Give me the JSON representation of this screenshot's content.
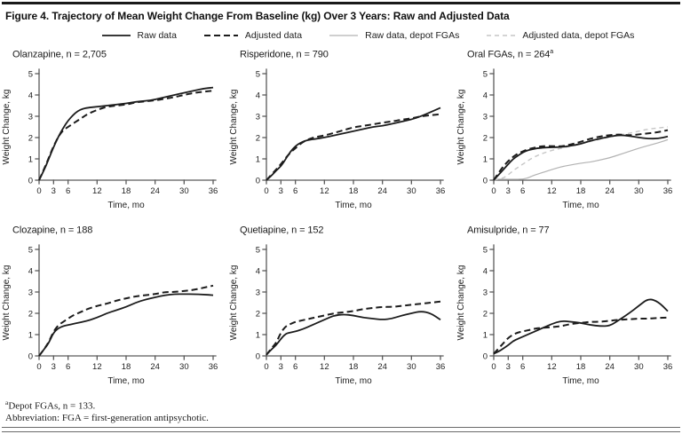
{
  "figure": {
    "title": "Figure 4. Trajectory of Mean Weight Change From Baseline (kg) Over 3 Years: Raw and Adjusted Data"
  },
  "legend": {
    "items": [
      {
        "label": "Raw data",
        "style": "raw"
      },
      {
        "label": "Adjusted data",
        "style": "adjusted"
      },
      {
        "label": "Raw data, depot FGAs",
        "style": "raw_depot"
      },
      {
        "label": "Adjusted data, depot FGAs",
        "style": "adjusted_depot"
      }
    ]
  },
  "footnotes": {
    "line1_sup": "a",
    "line1": "Depot FGAs, n = 133.",
    "line2": "Abbreviation: FGA = first-generation antipsychotic."
  },
  "chart_data": {
    "type": "line",
    "xlabel": "Time, mo",
    "ylabel": "Weight Change, kg",
    "xlim": [
      0,
      36
    ],
    "ylim": [
      0,
      5
    ],
    "xticks": [
      0,
      3,
      6,
      12,
      18,
      24,
      30,
      36
    ],
    "yticks": [
      0,
      1,
      2,
      3,
      4,
      5
    ],
    "grid": false,
    "legend_position": "top",
    "x": [
      0,
      1,
      2,
      3,
      4,
      5,
      6,
      7,
      8,
      9,
      10,
      12,
      14,
      16,
      18,
      20,
      22,
      24,
      26,
      28,
      30,
      32,
      34,
      36
    ],
    "styles": {
      "raw": {
        "color": "#1c1c1c",
        "width": 1.8,
        "dash": ""
      },
      "adjusted": {
        "color": "#1c1c1c",
        "width": 2.0,
        "dash": "7 4"
      },
      "raw_depot": {
        "color": "#b2b2b2",
        "width": 1.2,
        "dash": ""
      },
      "adjusted_depot": {
        "color": "#c6c6c6",
        "width": 1.4,
        "dash": "5 4"
      }
    },
    "charts": [
      {
        "title": "Olanzapine, n = 2,705",
        "title_sup": "",
        "series": [
          {
            "name": "Raw data",
            "style": "raw",
            "y": [
              0,
              0.45,
              1.0,
              1.55,
              2.05,
              2.45,
              2.8,
              3.05,
              3.25,
              3.35,
              3.4,
              3.45,
              3.5,
              3.55,
              3.6,
              3.68,
              3.72,
              3.78,
              3.9,
              4.0,
              4.1,
              4.2,
              4.3,
              4.35
            ]
          },
          {
            "name": "Adjusted data",
            "style": "adjusted",
            "y": [
              0,
              0.5,
              1.05,
              1.6,
              2.05,
              2.35,
              2.5,
              2.65,
              2.8,
              2.95,
              3.1,
              3.3,
              3.45,
              3.5,
              3.55,
              3.65,
              3.7,
              3.75,
              3.82,
              3.9,
              4.0,
              4.1,
              4.15,
              4.2
            ]
          }
        ]
      },
      {
        "title": "Risperidone, n = 790",
        "title_sup": "",
        "series": [
          {
            "name": "Raw data",
            "style": "raw",
            "y": [
              0,
              0.2,
              0.45,
              0.65,
              1.0,
              1.35,
              1.6,
              1.75,
              1.85,
              1.9,
              1.93,
              2.0,
              2.1,
              2.2,
              2.3,
              2.4,
              2.5,
              2.55,
              2.65,
              2.75,
              2.85,
              3.0,
              3.2,
              3.4
            ]
          },
          {
            "name": "Adjusted data",
            "style": "adjusted",
            "y": [
              0,
              0.25,
              0.5,
              0.75,
              1.05,
              1.3,
              1.5,
              1.7,
              1.85,
              1.95,
              2.02,
              2.1,
              2.22,
              2.35,
              2.48,
              2.55,
              2.62,
              2.7,
              2.76,
              2.84,
              2.9,
              3.0,
              3.05,
              3.1
            ]
          }
        ]
      },
      {
        "title": "Oral FGAs, n = 264",
        "title_sup": "a",
        "series": [
          {
            "name": "Raw data, depot FGAs",
            "style": "raw_depot",
            "y": [
              0.05,
              0.04,
              0.04,
              0.04,
              0.04,
              0.04,
              0.05,
              0.1,
              0.2,
              0.28,
              0.35,
              0.5,
              0.63,
              0.72,
              0.8,
              0.85,
              0.95,
              1.05,
              1.2,
              1.35,
              1.5,
              1.63,
              1.75,
              1.9
            ]
          },
          {
            "name": "Adjusted data, depot FGAs",
            "style": "adjusted_depot",
            "y": [
              0,
              0.05,
              0.1,
              0.25,
              0.45,
              0.6,
              0.75,
              0.9,
              1.05,
              1.15,
              1.25,
              1.4,
              1.5,
              1.6,
              1.7,
              1.82,
              1.92,
              2.02,
              2.12,
              2.2,
              2.3,
              2.4,
              2.45,
              2.5
            ]
          },
          {
            "name": "Raw data",
            "style": "raw",
            "y": [
              0,
              0.25,
              0.5,
              0.75,
              1.0,
              1.15,
              1.3,
              1.4,
              1.45,
              1.5,
              1.52,
              1.55,
              1.55,
              1.62,
              1.7,
              1.85,
              1.95,
              2.05,
              2.12,
              2.08,
              2.0,
              1.95,
              1.95,
              2.05
            ]
          },
          {
            "name": "Adjusted data",
            "style": "adjusted",
            "y": [
              0,
              0.35,
              0.65,
              0.9,
              1.1,
              1.25,
              1.35,
              1.45,
              1.5,
              1.55,
              1.6,
              1.6,
              1.58,
              1.68,
              1.8,
              1.95,
              2.05,
              2.12,
              2.15,
              2.1,
              2.15,
              2.2,
              2.25,
              2.35
            ]
          }
        ]
      },
      {
        "title": "Clozapine, n = 188",
        "title_sup": "",
        "series": [
          {
            "name": "Raw data",
            "style": "raw",
            "y": [
              0,
              0.3,
              0.6,
              1.1,
              1.3,
              1.4,
              1.45,
              1.5,
              1.55,
              1.6,
              1.65,
              1.8,
              2.0,
              2.15,
              2.3,
              2.5,
              2.65,
              2.75,
              2.85,
              2.9,
              2.9,
              2.9,
              2.88,
              2.85
            ]
          },
          {
            "name": "Adjusted data",
            "style": "adjusted",
            "y": [
              0,
              0.3,
              0.65,
              1.15,
              1.45,
              1.6,
              1.75,
              1.9,
              2.0,
              2.1,
              2.2,
              2.35,
              2.45,
              2.6,
              2.7,
              2.8,
              2.85,
              2.9,
              3.0,
              3.0,
              3.05,
              3.1,
              3.2,
              3.3
            ]
          }
        ]
      },
      {
        "title": "Quetiapine, n = 152",
        "title_sup": "",
        "series": [
          {
            "name": "Raw data",
            "style": "raw",
            "y": [
              0.05,
              0.3,
              0.5,
              0.8,
              1.05,
              1.1,
              1.15,
              1.22,
              1.3,
              1.4,
              1.5,
              1.7,
              1.9,
              1.95,
              1.9,
              1.8,
              1.75,
              1.7,
              1.75,
              1.9,
              2.0,
              2.1,
              2.0,
              1.7
            ]
          },
          {
            "name": "Adjusted data",
            "style": "adjusted",
            "y": [
              0.05,
              0.35,
              0.6,
              1.1,
              1.4,
              1.5,
              1.6,
              1.65,
              1.7,
              1.75,
              1.8,
              1.9,
              2.0,
              2.05,
              2.1,
              2.2,
              2.25,
              2.3,
              2.3,
              2.35,
              2.4,
              2.45,
              2.5,
              2.55
            ]
          }
        ]
      },
      {
        "title": "Amisulpride, n = 77",
        "title_sup": "",
        "series": [
          {
            "name": "Raw data",
            "style": "raw",
            "y": [
              0.1,
              0.2,
              0.35,
              0.5,
              0.7,
              0.8,
              0.9,
              1.0,
              1.1,
              1.2,
              1.3,
              1.5,
              1.65,
              1.6,
              1.55,
              1.45,
              1.4,
              1.4,
              1.7,
              2.0,
              2.35,
              2.7,
              2.55,
              2.1
            ]
          },
          {
            "name": "Adjusted data",
            "style": "adjusted",
            "y": [
              0.1,
              0.35,
              0.6,
              0.85,
              1.0,
              1.1,
              1.15,
              1.2,
              1.25,
              1.3,
              1.32,
              1.35,
              1.4,
              1.5,
              1.55,
              1.6,
              1.6,
              1.65,
              1.7,
              1.72,
              1.75,
              1.75,
              1.78,
              1.8
            ]
          }
        ]
      }
    ]
  }
}
